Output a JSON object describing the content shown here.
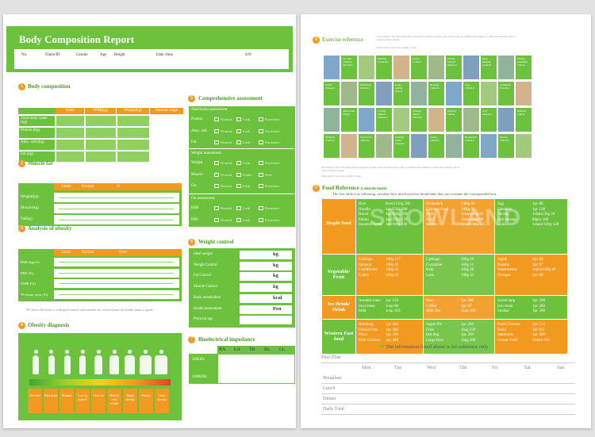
{
  "left": {
    "title": "Body Composition Report",
    "info_labels": [
      "No.",
      "Name/ID",
      "Gender",
      "Age",
      "Height",
      "Date /time",
      "S/N"
    ],
    "s1": {
      "num": "1",
      "title": "Body composition",
      "headers": [
        "Value",
        "FFM(kg)",
        "Weight(kg)",
        "Normal range"
      ],
      "rows": [
        "Total body water (kg)",
        "Protein (kg)",
        "Absc.-salt (kg)",
        "Fat (kg)"
      ]
    },
    "s2": {
      "num": "2",
      "title": "Muscle fat",
      "headers": [
        "Under",
        "Normal",
        "O"
      ],
      "rows": [
        "Weight(kg)",
        "Muscle(kg)",
        "Fat(kg)"
      ]
    },
    "s3": {
      "num": "3",
      "title": "Analysis of obesity",
      "headers": [
        "Under",
        "Normal",
        "Over"
      ],
      "rows": [
        "BMI (kg/m²)",
        "PBF (%)",
        "WHR (%)",
        "Moisture ratio (%)"
      ],
      "note_label": "Note:",
      "note1": "\"C\" shows the body is high in fat and low in muscle, which means the health status is not good.",
      "note2": "\"D\" shows the body is with good muscle and suitable fat, which means the health status is good."
    },
    "s4": {
      "num": "4",
      "title": "Obesity diagnosis",
      "categories": [
        "Too thin",
        "Thin shape",
        "Normal",
        "Low in muscle",
        "Over fat",
        "Muscle over weight",
        "Slight obesity",
        "Obesity",
        "Over obesity"
      ]
    },
    "s5": {
      "num": "5",
      "title": "Comprehensive assessment",
      "nutri_title": "Nutritional assessment",
      "nutri_rows": [
        "Protein",
        "Absc. salt",
        "Fat"
      ],
      "nutri_opts": [
        "Normal",
        "Lack",
        "Excessive"
      ],
      "weight_title": "Weight assessment",
      "weight_rows": [
        "Weight",
        "Muscle",
        "Fat"
      ],
      "weight_opts": [
        [
          "Normal",
          "Lack",
          "Excessive"
        ],
        [
          "Normal",
          "Under",
          "Over"
        ],
        [
          "Normal",
          "Lack",
          "Excessive"
        ]
      ],
      "fat_title": "Fat assessment",
      "fat_rows": [
        "BMI",
        "PBF"
      ],
      "fat_opts": [
        "Normal",
        "Lack",
        "Excessive"
      ]
    },
    "s6": {
      "num": "6",
      "title": "Weight control",
      "rows": [
        "Ideal weight",
        "Weight Control",
        "Fat Control",
        "Muscle Control",
        "Basis metabolism",
        "Health assessment",
        "Physical age"
      ],
      "units": [
        "kg",
        "kg",
        "kg",
        "kg",
        "kcal",
        "Pen",
        ""
      ]
    },
    "s7": {
      "num": "7",
      "title": "Bioelectrical impedance",
      "headers": [
        "RA",
        "LA",
        "TR",
        "RL",
        "LL"
      ],
      "rows": [
        "20KHz",
        "100KHz"
      ]
    }
  },
  "right": {
    "s8": {
      "num": "8",
      "title": "Exercise reference",
      "desc": "According to the following table arranged a weekly exercise plan and be able to estimate the number of these movements can be reduced daily weight.",
      "daily": "Daily need 1 per body weight 1 hour",
      "activities": [
        "Up stairs 15min/hr 30.0 /hr/d",
        "Running 14.9kcal/d",
        "Karate 13.0kcal",
        "Playing football 9.0kcal/d",
        "Rope jumping 10.0kcal",
        "Playing basketball 7.0kcal",
        "Tennis 8.0kcal/d",
        "Badminton 6.0kcal/d",
        "Roller skating 8.0kcal",
        "Bowling 7.0kcal/d",
        "Yoga 7.0kcal/d",
        "Swimming 8.0kcal/d",
        "Table tennis 5.0kcal",
        "Cycling 10km/hr 4.0kcal/d",
        "Walking 4km/hr 3.0kcal/d",
        "Dancing 5.0kcal",
        "Golf 4.0kcal/d",
        "Billiards 2.6kcal",
        "Shopping 3.5kcal/d",
        "Sweep floor 3.8kcal/d",
        "Washing dishes 3.0kcal/d",
        "Ironing 3.0kcal/d",
        "Housework 3.5kcal/d",
        "Sewing 2.0kcal/d"
      ],
      "foot": "According to the following table arranged a weekly exercise plan and be able to estimate the number of these movements can be reduced daily weight.",
      "foot2": "Daily need 1 per body weight 1 hour"
    },
    "s9": {
      "num": "8",
      "title": "Food Reference",
      "title_suffix": "(calories/unit)",
      "desc": "The first table is as following, calculate how much exercise should take that can consume the corresponded heat.",
      "watermark": "SNOWLAND",
      "groups": [
        {
          "name": "Staple food",
          "cols": [
            "Rice\nNoodle\nBread\nPotato\nSteamed bread",
            "Bowl/150g 200\n1pc/150g 280\n1pc/100g 260\n1pc/250g 170\n1pc/100g 240",
            "Drumstick\nChicken chest\nPork\nBeef\nMutton",
            "1/8kg 69\n1/8kg 66\n1share/60g 85\n1share/60g 80\n1share/60g 125",
            "Egg\nOmelette\nShrimp\nBoil shrimp\nCrab",
            "1pc 80\n1pc 138\n1share/30g 26\n80pcs 100\n1share/100g 128"
          ]
        },
        {
          "name": "Vegetable/ Fruit",
          "cols": [
            "Cabbage\nSpinach\nCauliflower\nCelery",
            "100g 117\n100g 25\n100g 33\n100g 22",
            "Cabbage\nCucumber\nKelp\nLeek",
            "100g 19\n100g 12\n100g 36\n100g 41",
            "Apple\nBanana\nWatermelon\nOranges",
            "1pc 80\n1pc 87\n1slice/240g 40\n1pc 80"
          ]
        },
        {
          "name": "Ice Drink/ Drink",
          "cols": [
            "Aerated water\nSoya bean\nMilk",
            "1pc 150\n1cup 60\n1cup 163",
            "Beer\nCoffee\nMilk Tea",
            "1pc 200\n1pc 67\n1cup 168",
            "Sweet tang\nIce cream\nSundae",
            "1pc 290\n1pc 280\n1pc 300"
          ]
        },
        {
          "name": "Western Fast food",
          "cols": [
            "Hamburg\nFrench fries\nPizza\nMalt Chicken",
            "1pc 440\n1pc 380\n1pc 250\n1pc 280",
            "Apple Pie\nFries\nHot dog\nLarge fries",
            "1pc 260\n1bag 220\n1pc 269\n1bag 400",
            "Fried Chicken\nSushi\nSandwich\nCream Sushi",
            "1pc 512\n1bl 165\n1pc 300\n1share 334"
          ]
        }
      ],
      "foot": "The information listed above is for reference only"
    },
    "plan": {
      "title": "Diet Plan",
      "days": [
        "Mon",
        "Tue",
        "Wed",
        "Thu",
        "Fri",
        "Sat",
        "Sun"
      ],
      "meals": [
        "Breakfast",
        "Lunch",
        "Dinner",
        "Daily Total"
      ]
    }
  }
}
